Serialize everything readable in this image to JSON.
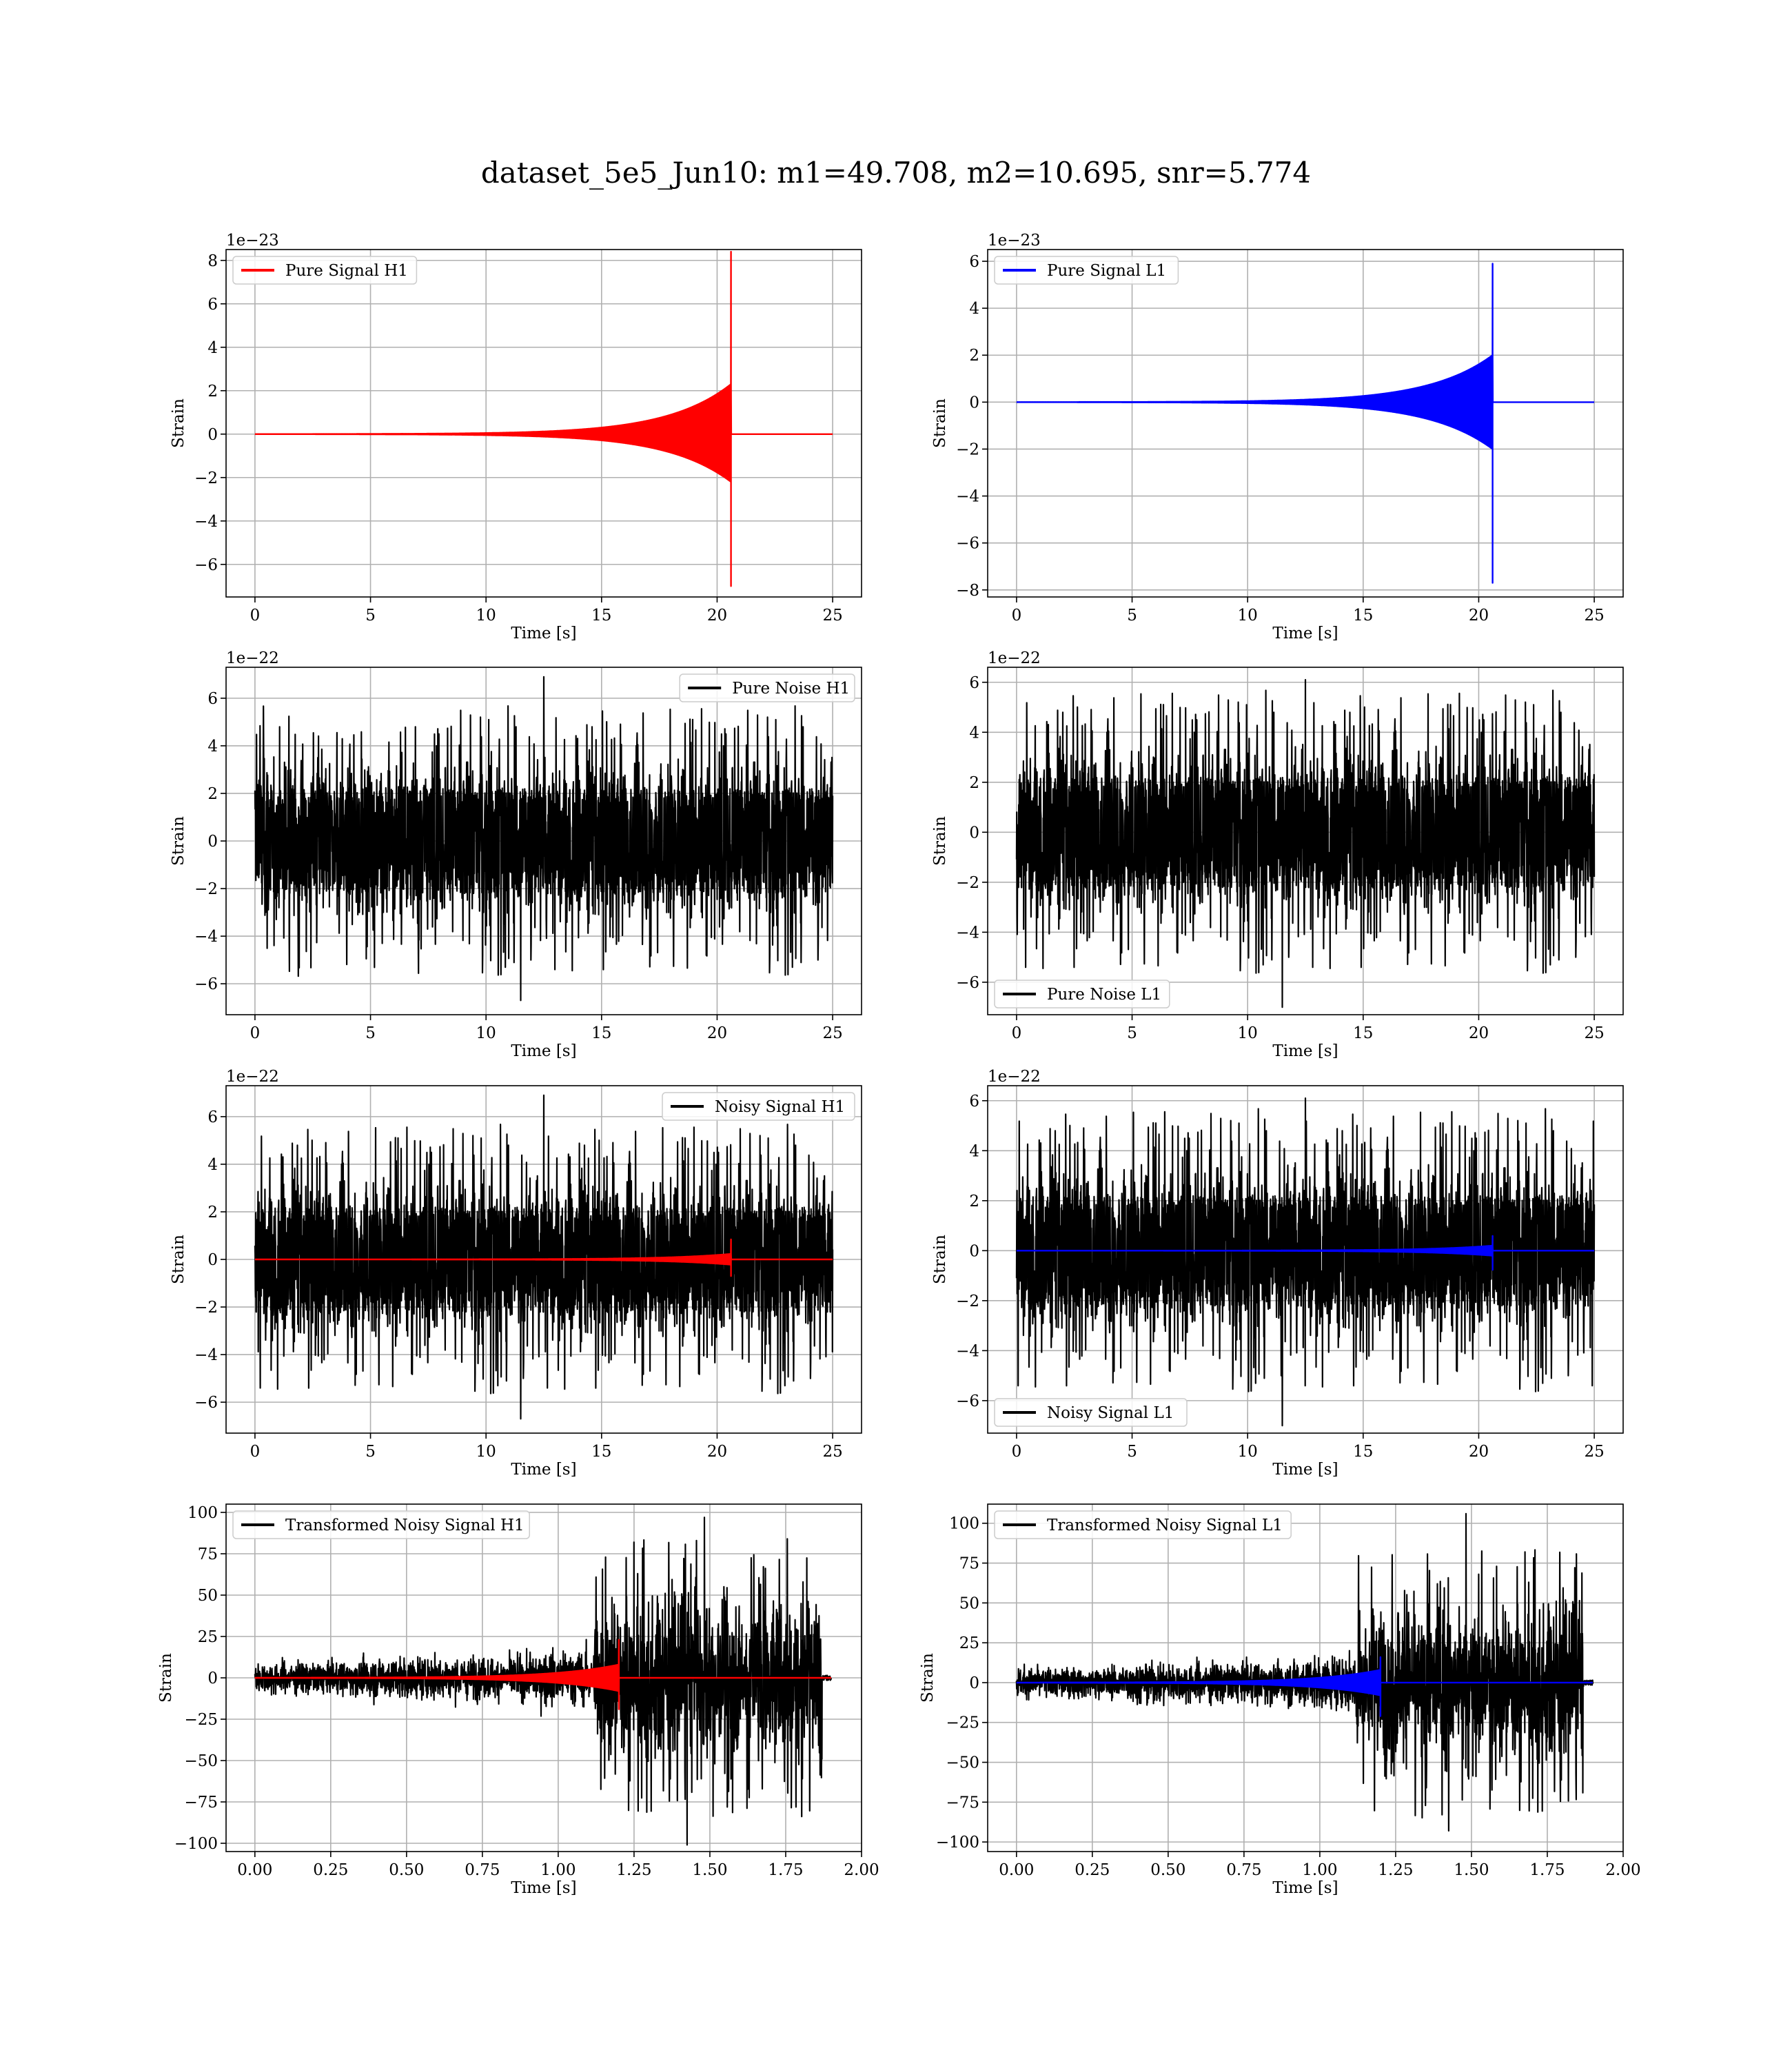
{
  "figure": {
    "title": "dataset_5e5_Jun10: m1=49.708, m2=10.695, snr=5.774"
  },
  "colors": {
    "h1": "#ff0000",
    "l1": "#0000ff",
    "noise": "#000000",
    "grid": "#b0b0b0"
  },
  "chart_data": [
    {
      "type": "line",
      "row": 0,
      "col": 0,
      "xlabel": "Time [s]",
      "ylabel": "Strain",
      "exponent": "1e−23",
      "xlim": [
        -1.25,
        26.25
      ],
      "ylim": [
        -7.5,
        8.5
      ],
      "xticks": [
        0,
        5,
        10,
        15,
        20,
        25
      ],
      "xtick_labels": [
        "0",
        "5",
        "10",
        "15",
        "20",
        "25"
      ],
      "yticks": [
        -6,
        -4,
        -2,
        0,
        2,
        4,
        6,
        8
      ],
      "ytick_labels": [
        "−6",
        "−4",
        "−2",
        "0",
        "2",
        "4",
        "6",
        "8"
      ],
      "grid": true,
      "legend_position": "upper left",
      "series": [
        {
          "name": "Pure Signal H1",
          "color": "#ff0000",
          "kind": "chirp",
          "x_start": 0,
          "x_end": 25,
          "merger": 20.6,
          "peak_high": 8.4,
          "peak_low": -7.0,
          "env_pre": 2.3,
          "env_low": -2.2
        }
      ]
    },
    {
      "type": "line",
      "row": 0,
      "col": 1,
      "xlabel": "Time [s]",
      "ylabel": "Strain",
      "exponent": "1e−23",
      "xlim": [
        -1.25,
        26.25
      ],
      "ylim": [
        -8.3,
        6.5
      ],
      "xticks": [
        0,
        5,
        10,
        15,
        20,
        25
      ],
      "xtick_labels": [
        "0",
        "5",
        "10",
        "15",
        "20",
        "25"
      ],
      "yticks": [
        -8,
        -6,
        -4,
        -2,
        0,
        2,
        4,
        6
      ],
      "ytick_labels": [
        "−8",
        "−6",
        "−4",
        "−2",
        "0",
        "2",
        "4",
        "6"
      ],
      "grid": true,
      "legend_position": "upper left",
      "series": [
        {
          "name": "Pure Signal L1",
          "color": "#0000ff",
          "kind": "chirp",
          "x_start": 0,
          "x_end": 25,
          "merger": 20.6,
          "peak_high": 5.9,
          "peak_low": -7.7,
          "env_pre": 2.0,
          "env_low": -2.0
        }
      ]
    },
    {
      "type": "line",
      "row": 1,
      "col": 0,
      "xlabel": "Time [s]",
      "ylabel": "Strain",
      "exponent": "1e−22",
      "xlim": [
        -1.25,
        26.25
      ],
      "ylim": [
        -7.3,
        7.3
      ],
      "xticks": [
        0,
        5,
        10,
        15,
        20,
        25
      ],
      "xtick_labels": [
        "0",
        "5",
        "10",
        "15",
        "20",
        "25"
      ],
      "yticks": [
        -6,
        -4,
        -2,
        0,
        2,
        4,
        6
      ],
      "ytick_labels": [
        "−6",
        "−4",
        "−2",
        "0",
        "2",
        "4",
        "6"
      ],
      "grid": true,
      "legend_position": "upper right",
      "series": [
        {
          "name": "Pure Noise H1",
          "color": "#000000",
          "kind": "noise",
          "x_start": 0,
          "x_end": 25,
          "band": 3.0,
          "spike_high": 6.9,
          "spike_low": -6.7
        }
      ]
    },
    {
      "type": "line",
      "row": 1,
      "col": 1,
      "xlabel": "Time [s]",
      "ylabel": "Strain",
      "exponent": "1e−22",
      "xlim": [
        -1.25,
        26.25
      ],
      "ylim": [
        -7.3,
        6.6
      ],
      "xticks": [
        0,
        5,
        10,
        15,
        20,
        25
      ],
      "xtick_labels": [
        "0",
        "5",
        "10",
        "15",
        "20",
        "25"
      ],
      "yticks": [
        -6,
        -4,
        -2,
        0,
        2,
        4,
        6
      ],
      "ytick_labels": [
        "−6",
        "−4",
        "−2",
        "0",
        "2",
        "4",
        "6"
      ],
      "grid": true,
      "legend_position": "lower left",
      "series": [
        {
          "name": "Pure Noise L1",
          "color": "#000000",
          "kind": "noise",
          "x_start": 0,
          "x_end": 25,
          "band": 3.0,
          "spike_high": 6.1,
          "spike_low": -7.0
        }
      ]
    },
    {
      "type": "line",
      "row": 2,
      "col": 0,
      "xlabel": "Time [s]",
      "ylabel": "Strain",
      "exponent": "1e−22",
      "xlim": [
        -1.25,
        26.25
      ],
      "ylim": [
        -7.3,
        7.3
      ],
      "xticks": [
        0,
        5,
        10,
        15,
        20,
        25
      ],
      "xtick_labels": [
        "0",
        "5",
        "10",
        "15",
        "20",
        "25"
      ],
      "yticks": [
        -6,
        -4,
        -2,
        0,
        2,
        4,
        6
      ],
      "ytick_labels": [
        "−6",
        "−4",
        "−2",
        "0",
        "2",
        "4",
        "6"
      ],
      "grid": true,
      "legend_position": "upper right",
      "series": [
        {
          "name": "Noisy Signal H1",
          "color": "#000000",
          "kind": "noise",
          "x_start": 0,
          "x_end": 25,
          "band": 3.0,
          "spike_high": 6.9,
          "spike_low": -6.7
        },
        {
          "name": "",
          "color": "#ff0000",
          "kind": "chirp",
          "x_start": 0,
          "x_end": 25,
          "merger": 20.6,
          "peak_high": 0.84,
          "peak_low": -0.7,
          "env_pre": 0.23,
          "env_low": -0.22
        }
      ]
    },
    {
      "type": "line",
      "row": 2,
      "col": 1,
      "xlabel": "Time [s]",
      "ylabel": "Strain",
      "exponent": "1e−22",
      "xlim": [
        -1.25,
        26.25
      ],
      "ylim": [
        -7.3,
        6.6
      ],
      "xticks": [
        0,
        5,
        10,
        15,
        20,
        25
      ],
      "xtick_labels": [
        "0",
        "5",
        "10",
        "15",
        "20",
        "25"
      ],
      "yticks": [
        -6,
        -4,
        -2,
        0,
        2,
        4,
        6
      ],
      "ytick_labels": [
        "−6",
        "−4",
        "−2",
        "0",
        "2",
        "4",
        "6"
      ],
      "grid": true,
      "legend_position": "lower left",
      "series": [
        {
          "name": "Noisy Signal L1",
          "color": "#000000",
          "kind": "noise",
          "x_start": 0,
          "x_end": 25,
          "band": 3.0,
          "spike_high": 6.1,
          "spike_low": -7.0
        },
        {
          "name": "",
          "color": "#0000ff",
          "kind": "chirp",
          "x_start": 0,
          "x_end": 25,
          "merger": 20.6,
          "peak_high": 0.59,
          "peak_low": -0.77,
          "env_pre": 0.2,
          "env_low": -0.2
        }
      ]
    },
    {
      "type": "line",
      "row": 3,
      "col": 0,
      "xlabel": "Time [s]",
      "ylabel": "Strain",
      "exponent": "",
      "xlim": [
        -0.095,
        2.0
      ],
      "ylim": [
        -105,
        105
      ],
      "xticks": [
        0,
        0.25,
        0.5,
        0.75,
        1.0,
        1.25,
        1.5,
        1.75,
        2.0
      ],
      "xtick_labels": [
        "0.00",
        "0.25",
        "0.50",
        "0.75",
        "1.00",
        "1.25",
        "1.50",
        "1.75",
        "2.00"
      ],
      "yticks": [
        -100,
        -75,
        -50,
        -25,
        0,
        25,
        50,
        75,
        100
      ],
      "ytick_labels": [
        "−100",
        "−75",
        "−50",
        "−25",
        "0",
        "25",
        "50",
        "75",
        "100"
      ],
      "grid": true,
      "legend_position": "upper left",
      "series": [
        {
          "name": "Transformed Noisy Signal H1",
          "color": "#000000",
          "kind": "transformed",
          "x_start": 0,
          "x_end": 1.9,
          "quiet_band": 8,
          "loud_start": 1.12,
          "loud_end": 1.87,
          "loud_band": 40,
          "peak_high": 97,
          "peak_low": -101
        },
        {
          "name": "",
          "color": "#ff0000",
          "kind": "chirp",
          "x_start": 0,
          "x_end": 1.9,
          "merger": 1.2,
          "peak_high": 23,
          "peak_low": -19,
          "env_pre": 8,
          "env_low": -8
        }
      ]
    },
    {
      "type": "line",
      "row": 3,
      "col": 1,
      "xlabel": "Time [s]",
      "ylabel": "Strain",
      "exponent": "",
      "xlim": [
        -0.095,
        2.0
      ],
      "ylim": [
        -106,
        112
      ],
      "xticks": [
        0,
        0.25,
        0.5,
        0.75,
        1.0,
        1.25,
        1.5,
        1.75,
        2.0
      ],
      "xtick_labels": [
        "0.00",
        "0.25",
        "0.50",
        "0.75",
        "1.00",
        "1.25",
        "1.50",
        "1.75",
        "2.00"
      ],
      "yticks": [
        -100,
        -75,
        -50,
        -25,
        0,
        25,
        50,
        75,
        100
      ],
      "ytick_labels": [
        "−100",
        "−75",
        "−50",
        "−25",
        "0",
        "25",
        "50",
        "75",
        "100"
      ],
      "grid": true,
      "legend_position": "upper left",
      "series": [
        {
          "name": "Transformed Noisy Signal L1",
          "color": "#000000",
          "kind": "transformed",
          "x_start": 0,
          "x_end": 1.9,
          "quiet_band": 8,
          "loud_start": 1.12,
          "loud_end": 1.87,
          "loud_band": 40,
          "peak_high": 106,
          "peak_low": -93
        },
        {
          "name": "",
          "color": "#0000ff",
          "kind": "chirp",
          "x_start": 0,
          "x_end": 1.9,
          "merger": 1.2,
          "peak_high": 16,
          "peak_low": -21,
          "env_pre": 8,
          "env_low": -8
        }
      ]
    }
  ]
}
